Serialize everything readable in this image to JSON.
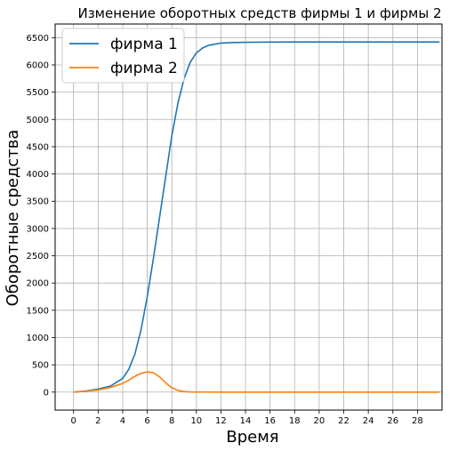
{
  "chart_data": {
    "type": "line",
    "title": "Изменение оборотных средств фирмы 1 и фирмы 2",
    "xlabel": "Время",
    "ylabel": "Оборотные средства",
    "xlim": [
      -1.5,
      30.0
    ],
    "ylim": [
      -330,
      6750
    ],
    "xticks": [
      0,
      2,
      4,
      6,
      8,
      10,
      12,
      14,
      16,
      18,
      20,
      22,
      24,
      26,
      28
    ],
    "yticks": [
      0,
      500,
      1000,
      1500,
      2000,
      2500,
      3000,
      3500,
      4000,
      4500,
      5000,
      5500,
      6000,
      6500
    ],
    "grid": true,
    "legend_position": "top-left",
    "series": [
      {
        "name": "фирма 1",
        "color": "#1f77b4",
        "x": [
          0,
          1,
          2,
          3,
          4,
          4.5,
          5,
          5.5,
          6,
          6.5,
          7,
          7.5,
          8,
          8.5,
          9,
          9.5,
          10,
          10.5,
          11,
          12,
          13,
          14,
          16,
          18,
          20,
          25,
          29.8
        ],
        "y": [
          0,
          20,
          55,
          110,
          250,
          420,
          700,
          1150,
          1750,
          2450,
          3200,
          3950,
          4700,
          5300,
          5750,
          6050,
          6220,
          6310,
          6360,
          6400,
          6410,
          6415,
          6418,
          6420,
          6420,
          6420,
          6420
        ]
      },
      {
        "name": "фирма 2",
        "color": "#ff7f0e",
        "x": [
          0,
          1,
          2,
          3,
          4,
          4.5,
          5,
          5.5,
          6,
          6.5,
          7,
          7.5,
          8,
          8.5,
          9,
          9.5,
          10,
          11,
          12,
          14,
          16,
          20,
          25,
          29.8
        ],
        "y": [
          0,
          15,
          40,
          85,
          160,
          220,
          290,
          345,
          370,
          355,
          280,
          170,
          80,
          30,
          10,
          4,
          2,
          1,
          0,
          0,
          0,
          0,
          0,
          0
        ]
      }
    ]
  }
}
